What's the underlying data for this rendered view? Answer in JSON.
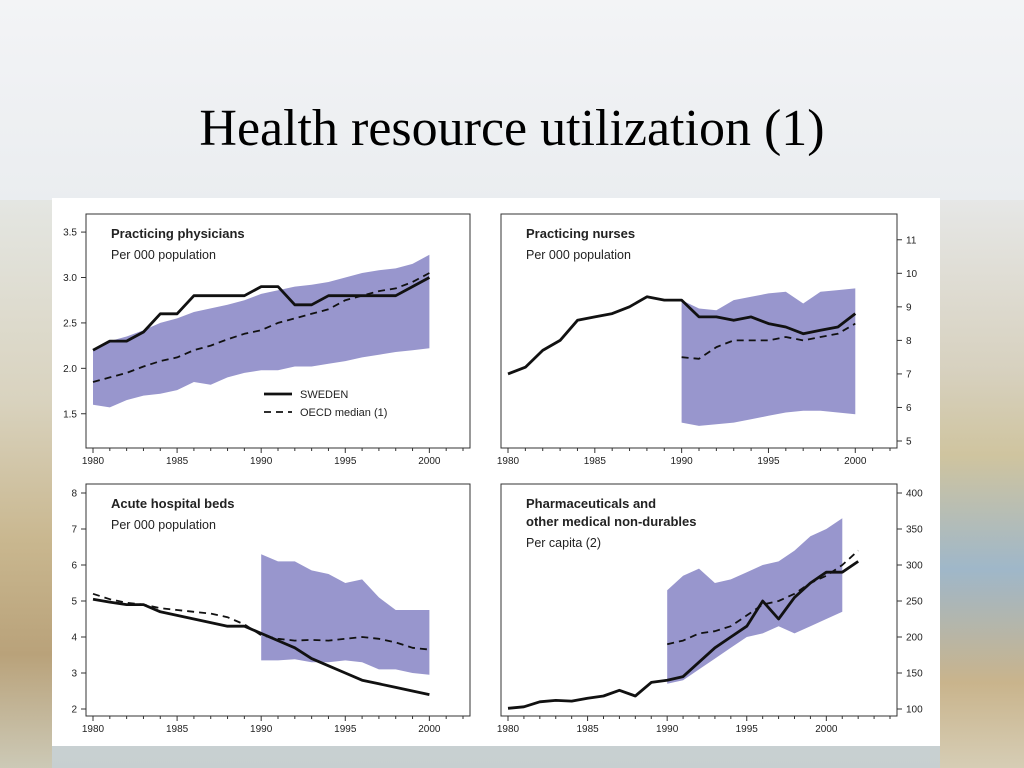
{
  "slide": {
    "title": "Health resource utilization (1)"
  },
  "chart_data": [
    {
      "type": "line",
      "panel": "top-left",
      "title": "Practicing physicians",
      "subtitle": "Per 000 population",
      "xlim": [
        1980,
        2002
      ],
      "ylim": [
        1.2,
        3.6
      ],
      "xticks": [
        1980,
        1985,
        1990,
        1995,
        2000
      ],
      "xtick_labels": [
        "1980",
        "1985",
        "1990",
        "1995",
        "2000"
      ],
      "yticks": [
        1.5,
        2.0,
        2.5,
        3.0,
        3.5
      ],
      "ytick_labels": [
        "1.5",
        "2.0",
        "2.5",
        "3.0",
        "3.5"
      ],
      "yaxis_side": "left",
      "band": {
        "x": [
          1980,
          1981,
          1982,
          1983,
          1984,
          1985,
          1986,
          1987,
          1988,
          1989,
          1990,
          1991,
          1992,
          1993,
          1994,
          1995,
          1996,
          1997,
          1998,
          1999,
          2000
        ],
        "low": [
          1.6,
          1.57,
          1.65,
          1.7,
          1.72,
          1.76,
          1.85,
          1.82,
          1.9,
          1.95,
          1.98,
          1.98,
          2.02,
          2.02,
          2.05,
          2.08,
          2.12,
          2.15,
          2.18,
          2.2,
          2.22
        ],
        "high": [
          2.2,
          2.3,
          2.35,
          2.42,
          2.5,
          2.55,
          2.62,
          2.66,
          2.7,
          2.75,
          2.82,
          2.86,
          2.9,
          2.92,
          2.95,
          3.0,
          3.05,
          3.08,
          3.1,
          3.15,
          3.25
        ]
      },
      "series": [
        {
          "name": "SWEDEN",
          "style": "solid",
          "x": [
            1980,
            1981,
            1982,
            1983,
            1984,
            1985,
            1986,
            1987,
            1988,
            1989,
            1990,
            1991,
            1992,
            1993,
            1994,
            1995,
            1996,
            1997,
            1998,
            1999,
            2000
          ],
          "values": [
            2.2,
            2.3,
            2.3,
            2.4,
            2.6,
            2.6,
            2.8,
            2.8,
            2.8,
            2.8,
            2.9,
            2.9,
            2.7,
            2.7,
            2.8,
            2.8,
            2.8,
            2.8,
            2.8,
            2.9,
            3.0
          ]
        },
        {
          "name": "OECD median (1)",
          "style": "dashed",
          "x": [
            1980,
            1981,
            1982,
            1983,
            1984,
            1985,
            1986,
            1987,
            1988,
            1989,
            1990,
            1991,
            1992,
            1993,
            1994,
            1995,
            1996,
            1997,
            1998,
            1999,
            2000
          ],
          "values": [
            1.85,
            1.9,
            1.95,
            2.02,
            2.08,
            2.12,
            2.2,
            2.25,
            2.32,
            2.38,
            2.42,
            2.5,
            2.55,
            2.6,
            2.65,
            2.75,
            2.8,
            2.85,
            2.88,
            2.95,
            3.05
          ]
        }
      ],
      "legend": {
        "position": "bottom-right",
        "entries": [
          {
            "label": "SWEDEN",
            "style": "solid"
          },
          {
            "label": "OECD median (1)",
            "style": "dashed"
          }
        ]
      }
    },
    {
      "type": "line",
      "panel": "top-right",
      "title": "Practicing nurses",
      "subtitle": "Per 000 population",
      "xlim": [
        1980,
        2002
      ],
      "ylim": [
        5,
        11.5
      ],
      "xticks": [
        1980,
        1985,
        1990,
        1995,
        2000
      ],
      "xtick_labels": [
        "1980",
        "1985",
        "1990",
        "1995",
        "2000"
      ],
      "yticks": [
        5,
        6,
        7,
        8,
        9,
        10,
        11
      ],
      "ytick_labels": [
        "5",
        "6",
        "7",
        "8",
        "9",
        "10",
        "11"
      ],
      "yaxis_side": "right",
      "band": {
        "x": [
          1990,
          1991,
          1992,
          1993,
          1994,
          1995,
          1996,
          1997,
          1998,
          1999,
          2000
        ],
        "low": [
          5.55,
          5.45,
          5.5,
          5.55,
          5.65,
          5.75,
          5.85,
          5.9,
          5.9,
          5.85,
          5.8
        ],
        "high": [
          9.2,
          8.95,
          8.9,
          9.2,
          9.3,
          9.4,
          9.45,
          9.1,
          9.45,
          9.5,
          9.55
        ]
      },
      "series": [
        {
          "name": "SWEDEN",
          "style": "solid",
          "x": [
            1980,
            1981,
            1982,
            1983,
            1984,
            1985,
            1986,
            1987,
            1988,
            1989,
            1990,
            1991,
            1992,
            1993,
            1994,
            1995,
            1996,
            1997,
            1998,
            1999,
            2000
          ],
          "values": [
            7.0,
            7.2,
            7.7,
            8.0,
            8.6,
            8.7,
            8.8,
            9.0,
            9.3,
            9.2,
            9.2,
            8.7,
            8.7,
            8.6,
            8.7,
            8.5,
            8.4,
            8.2,
            8.3,
            8.4,
            8.8
          ]
        },
        {
          "name": "OECD median (1)",
          "style": "dashed",
          "x": [
            1990,
            1991,
            1992,
            1993,
            1994,
            1995,
            1996,
            1997,
            1998,
            1999,
            2000
          ],
          "values": [
            7.5,
            7.45,
            7.8,
            8.0,
            8.0,
            8.0,
            8.1,
            8.0,
            8.1,
            8.2,
            8.5
          ]
        }
      ]
    },
    {
      "type": "line",
      "panel": "bottom-left",
      "title": "Acute hospital beds",
      "subtitle": "Per 000 population",
      "xlim": [
        1980,
        2002
      ],
      "ylim": [
        2,
        8
      ],
      "xticks": [
        1980,
        1985,
        1990,
        1995,
        2000
      ],
      "xtick_labels": [
        "1980",
        "1985",
        "1990",
        "1995",
        "2000"
      ],
      "yticks": [
        2,
        3,
        4,
        5,
        6,
        7,
        8
      ],
      "ytick_labels": [
        "2",
        "3",
        "4",
        "5",
        "6",
        "7",
        "8"
      ],
      "yaxis_side": "left",
      "band": {
        "x": [
          1990,
          1991,
          1992,
          1993,
          1994,
          1995,
          1996,
          1997,
          1998,
          1999,
          2000
        ],
        "low": [
          3.35,
          3.35,
          3.38,
          3.3,
          3.3,
          3.35,
          3.3,
          3.1,
          3.1,
          3.0,
          2.95
        ],
        "high": [
          6.3,
          6.1,
          6.1,
          5.85,
          5.75,
          5.5,
          5.6,
          5.1,
          4.75,
          4.75,
          4.75
        ]
      },
      "series": [
        {
          "name": "SWEDEN",
          "style": "solid",
          "x": [
            1980,
            1981,
            1982,
            1983,
            1984,
            1985,
            1986,
            1987,
            1988,
            1989,
            1990,
            1991,
            1992,
            1993,
            1994,
            1995,
            1996,
            1997,
            1998,
            1999,
            2000
          ],
          "values": [
            5.05,
            4.97,
            4.9,
            4.9,
            4.7,
            4.6,
            4.5,
            4.4,
            4.3,
            4.3,
            4.1,
            3.9,
            3.7,
            3.4,
            3.2,
            3.0,
            2.8,
            2.7,
            2.6,
            2.5,
            2.4
          ]
        },
        {
          "name": "OECD median (1)",
          "style": "dashed",
          "x": [
            1980,
            1981,
            1982,
            1983,
            1984,
            1985,
            1986,
            1987,
            1988,
            1989,
            1990,
            1991,
            1992,
            1993,
            1994,
            1995,
            1996,
            1997,
            1998,
            1999,
            2000
          ],
          "values": [
            5.2,
            5.05,
            4.95,
            4.9,
            4.8,
            4.75,
            4.7,
            4.65,
            4.55,
            4.35,
            4.05,
            3.95,
            3.9,
            3.92,
            3.9,
            3.95,
            4.0,
            3.95,
            3.85,
            3.7,
            3.65
          ]
        }
      ]
    },
    {
      "type": "line",
      "panel": "bottom-right",
      "title": "Pharmaceuticals and",
      "title2": "other medical non-durables",
      "subtitle": "Per capita (2)",
      "xlim": [
        1980,
        2004
      ],
      "ylim": [
        100,
        400
      ],
      "xticks": [
        1980,
        1985,
        1990,
        1995,
        2000
      ],
      "xtick_labels": [
        "1980",
        "1985",
        "1990",
        "1995",
        "2000"
      ],
      "yticks": [
        100,
        150,
        200,
        250,
        300,
        350,
        400
      ],
      "ytick_labels": [
        "100",
        "150",
        "200",
        "250",
        "300",
        "350",
        "400"
      ],
      "yaxis_side": "right",
      "band": {
        "x": [
          1990,
          1991,
          1992,
          1993,
          1994,
          1995,
          1996,
          1997,
          1998,
          1999,
          2000,
          2001
        ],
        "low": [
          135,
          140,
          155,
          170,
          185,
          200,
          205,
          215,
          205,
          215,
          225,
          235
        ],
        "high": [
          265,
          285,
          295,
          275,
          280,
          290,
          300,
          305,
          320,
          340,
          350,
          365
        ]
      },
      "series": [
        {
          "name": "SWEDEN",
          "style": "solid",
          "x": [
            1980,
            1981,
            1982,
            1983,
            1984,
            1985,
            1986,
            1987,
            1988,
            1989,
            1990,
            1991,
            1992,
            1993,
            1994,
            1995,
            1996,
            1997,
            1998,
            1999,
            2000,
            2001,
            2002
          ],
          "values": [
            101,
            103,
            110,
            112,
            111,
            115,
            118,
            126,
            118,
            137,
            140,
            145,
            165,
            185,
            200,
            215,
            250,
            225,
            255,
            275,
            290,
            290,
            305
          ]
        },
        {
          "name": "OECD median (1)",
          "style": "dashed",
          "x": [
            1990,
            1991,
            1992,
            1993,
            1994,
            1995,
            1996,
            1997,
            1998,
            1999,
            2000,
            2001,
            2002
          ],
          "values": [
            190,
            195,
            205,
            208,
            215,
            230,
            245,
            250,
            260,
            275,
            285,
            300,
            320
          ]
        }
      ]
    }
  ]
}
